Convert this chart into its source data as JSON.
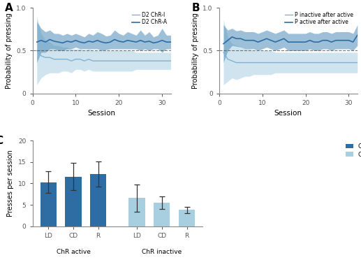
{
  "panel_A": {
    "label": "A",
    "sessions": [
      1,
      2,
      3,
      4,
      5,
      6,
      7,
      8,
      9,
      10,
      11,
      12,
      13,
      14,
      15,
      16,
      17,
      18,
      19,
      20,
      21,
      22,
      23,
      24,
      25,
      26,
      27,
      28,
      29,
      30,
      31,
      32
    ],
    "dark_mean": [
      0.6,
      0.62,
      0.6,
      0.63,
      0.61,
      0.6,
      0.59,
      0.61,
      0.6,
      0.62,
      0.6,
      0.59,
      0.61,
      0.6,
      0.62,
      0.6,
      0.59,
      0.6,
      0.63,
      0.61,
      0.6,
      0.62,
      0.61,
      0.6,
      0.62,
      0.6,
      0.61,
      0.59,
      0.6,
      0.62,
      0.6,
      0.6
    ],
    "dark_upper": [
      0.84,
      0.76,
      0.72,
      0.74,
      0.7,
      0.7,
      0.68,
      0.7,
      0.68,
      0.7,
      0.68,
      0.66,
      0.7,
      0.68,
      0.72,
      0.7,
      0.67,
      0.68,
      0.74,
      0.7,
      0.68,
      0.72,
      0.7,
      0.68,
      0.74,
      0.68,
      0.72,
      0.66,
      0.68,
      0.76,
      0.68,
      0.68
    ],
    "dark_lower": [
      0.36,
      0.48,
      0.48,
      0.52,
      0.52,
      0.5,
      0.5,
      0.52,
      0.52,
      0.54,
      0.52,
      0.52,
      0.52,
      0.52,
      0.52,
      0.5,
      0.51,
      0.52,
      0.52,
      0.52,
      0.52,
      0.52,
      0.52,
      0.52,
      0.5,
      0.52,
      0.5,
      0.52,
      0.52,
      0.48,
      0.52,
      0.52
    ],
    "light_mean": [
      0.5,
      0.44,
      0.42,
      0.42,
      0.4,
      0.4,
      0.4,
      0.4,
      0.38,
      0.4,
      0.4,
      0.38,
      0.4,
      0.38,
      0.38,
      0.38,
      0.38,
      0.38,
      0.38,
      0.38,
      0.38,
      0.38,
      0.38,
      0.38,
      0.38,
      0.38,
      0.38,
      0.38,
      0.38,
      0.38,
      0.38,
      0.38
    ],
    "light_upper": [
      0.9,
      0.7,
      0.62,
      0.6,
      0.56,
      0.56,
      0.54,
      0.54,
      0.52,
      0.52,
      0.52,
      0.5,
      0.52,
      0.5,
      0.5,
      0.5,
      0.5,
      0.5,
      0.5,
      0.5,
      0.5,
      0.5,
      0.5,
      0.48,
      0.48,
      0.48,
      0.48,
      0.48,
      0.48,
      0.48,
      0.48,
      0.48
    ],
    "light_lower": [
      0.1,
      0.18,
      0.22,
      0.24,
      0.24,
      0.24,
      0.26,
      0.26,
      0.24,
      0.28,
      0.28,
      0.26,
      0.28,
      0.26,
      0.26,
      0.26,
      0.26,
      0.26,
      0.26,
      0.26,
      0.26,
      0.26,
      0.26,
      0.28,
      0.28,
      0.28,
      0.28,
      0.28,
      0.28,
      0.28,
      0.28,
      0.28
    ],
    "dark_color": "#2e6da4",
    "light_color": "#7fb3d3",
    "dark_fill": "#4d8db8",
    "light_fill": "#a8cfe0",
    "ylabel": "Probability of pressing",
    "xlabel": "Session",
    "legend1": "D2 ChR-A",
    "legend2": "D2 ChR-I",
    "xlim": [
      0,
      32
    ],
    "ylim": [
      0,
      1.0
    ]
  },
  "panel_B": {
    "label": "B",
    "sessions": [
      1,
      2,
      3,
      4,
      5,
      6,
      7,
      8,
      9,
      10,
      11,
      12,
      13,
      14,
      15,
      16,
      17,
      18,
      19,
      20,
      21,
      22,
      23,
      24,
      25,
      26,
      27,
      28,
      29,
      30,
      31,
      32
    ],
    "dark_mean": [
      0.58,
      0.62,
      0.66,
      0.64,
      0.64,
      0.62,
      0.62,
      0.62,
      0.6,
      0.62,
      0.64,
      0.62,
      0.6,
      0.62,
      0.64,
      0.6,
      0.6,
      0.6,
      0.6,
      0.6,
      0.62,
      0.6,
      0.6,
      0.62,
      0.62,
      0.6,
      0.62,
      0.62,
      0.62,
      0.62,
      0.6,
      0.68
    ],
    "dark_upper": [
      0.8,
      0.74,
      0.76,
      0.73,
      0.74,
      0.72,
      0.72,
      0.72,
      0.7,
      0.72,
      0.74,
      0.72,
      0.7,
      0.72,
      0.74,
      0.7,
      0.7,
      0.7,
      0.7,
      0.7,
      0.72,
      0.7,
      0.7,
      0.72,
      0.72,
      0.7,
      0.72,
      0.72,
      0.72,
      0.72,
      0.7,
      0.8
    ],
    "dark_lower": [
      0.36,
      0.5,
      0.56,
      0.55,
      0.54,
      0.52,
      0.52,
      0.52,
      0.5,
      0.52,
      0.54,
      0.52,
      0.5,
      0.52,
      0.54,
      0.5,
      0.5,
      0.5,
      0.5,
      0.5,
      0.52,
      0.5,
      0.5,
      0.52,
      0.52,
      0.5,
      0.52,
      0.52,
      0.52,
      0.52,
      0.5,
      0.56
    ],
    "light_mean": [
      0.48,
      0.4,
      0.38,
      0.36,
      0.36,
      0.36,
      0.36,
      0.36,
      0.36,
      0.36,
      0.36,
      0.36,
      0.36,
      0.36,
      0.36,
      0.36,
      0.36,
      0.36,
      0.36,
      0.36,
      0.36,
      0.36,
      0.36,
      0.36,
      0.36,
      0.36,
      0.36,
      0.36,
      0.36,
      0.36,
      0.36,
      0.36
    ],
    "light_upper": [
      0.86,
      0.66,
      0.58,
      0.56,
      0.54,
      0.52,
      0.52,
      0.5,
      0.5,
      0.5,
      0.5,
      0.5,
      0.48,
      0.48,
      0.48,
      0.48,
      0.48,
      0.48,
      0.48,
      0.48,
      0.48,
      0.48,
      0.48,
      0.48,
      0.48,
      0.48,
      0.48,
      0.48,
      0.48,
      0.48,
      0.48,
      0.48
    ],
    "light_lower": [
      0.1,
      0.14,
      0.18,
      0.16,
      0.18,
      0.2,
      0.2,
      0.22,
      0.22,
      0.22,
      0.22,
      0.22,
      0.24,
      0.24,
      0.24,
      0.24,
      0.24,
      0.24,
      0.24,
      0.24,
      0.24,
      0.24,
      0.24,
      0.24,
      0.24,
      0.24,
      0.24,
      0.24,
      0.24,
      0.24,
      0.24,
      0.24
    ],
    "dark_color": "#2e6da4",
    "light_color": "#7fb3d3",
    "dark_fill": "#4d8db8",
    "light_fill": "#a8cfe0",
    "ylabel": "Probability of pressing",
    "xlabel": "Session",
    "legend1": "P active after active",
    "legend2": "P inactive after active",
    "xlim": [
      0,
      32
    ],
    "ylim": [
      0,
      1.0
    ]
  },
  "panel_C": {
    "label": "C",
    "categories": [
      "LD",
      "CD",
      "R"
    ],
    "dark_vals": [
      10.3,
      11.6,
      12.2
    ],
    "dark_err": [
      2.5,
      3.2,
      3.0
    ],
    "light_vals": [
      6.6,
      5.5,
      3.8
    ],
    "light_err": [
      3.2,
      1.5,
      0.7
    ],
    "dark_color": "#2e6da4",
    "light_color": "#a8cfe0",
    "ylabel": "Presses per session",
    "xlabel1": "ChR active",
    "xlabel2": "ChR inactive",
    "legend1": "ChR-A",
    "legend2": "ChR- I",
    "ylim": [
      0,
      20
    ],
    "yticks": [
      0,
      5,
      10,
      15,
      20
    ]
  },
  "bg_color": "#ffffff"
}
